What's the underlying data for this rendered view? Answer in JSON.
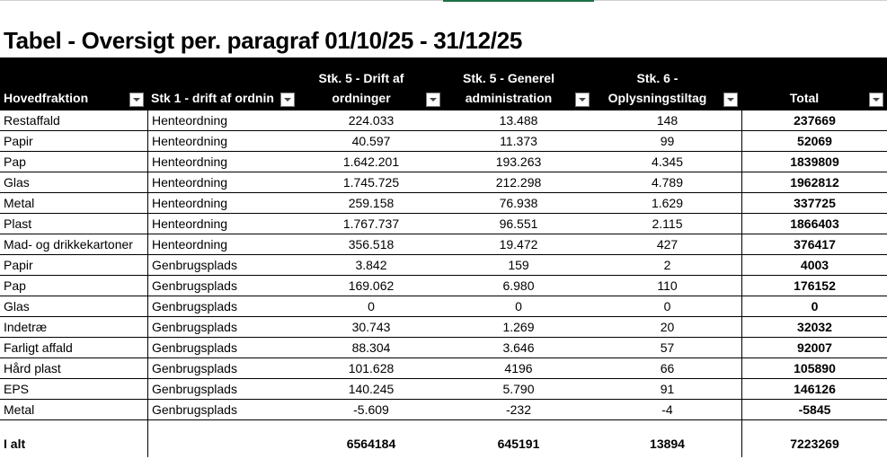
{
  "title": "Tabel - Oversigt per. paragraf 01/10/25 - 31/12/25",
  "columns": [
    {
      "line1": "",
      "line2": "Hovedfraktion",
      "filter_icon": "dropdown-arrow-icon"
    },
    {
      "line1": "",
      "line2": "Stk 1 - drift af ordnin",
      "filter_icon": "dropdown-arrow-icon"
    },
    {
      "line1": "Stk. 5 - Drift af",
      "line2": "ordninger",
      "filter_icon": "dropdown-arrow-icon"
    },
    {
      "line1": "Stk. 5 - Generel",
      "line2": "administration",
      "filter_icon": "dropdown-arrow-icon"
    },
    {
      "line1": "Stk. 6 -",
      "line2": "Oplysningstiltag",
      "filter_icon": "dropdown-arrow-icon"
    },
    {
      "line1": "",
      "line2": "Total",
      "filter_icon": "dropdown-arrow-icon"
    }
  ],
  "rows": [
    [
      "Restaffald",
      "Henteordning",
      "224.033",
      "13.488",
      "148",
      "237669"
    ],
    [
      "Papir",
      "Henteordning",
      "40.597",
      "11.373",
      "99",
      "52069"
    ],
    [
      "Pap",
      "Henteordning",
      "1.642.201",
      "193.263",
      "4.345",
      "1839809"
    ],
    [
      "Glas",
      "Henteordning",
      "1.745.725",
      "212.298",
      "4.789",
      "1962812"
    ],
    [
      "Metal",
      "Henteordning",
      "259.158",
      "76.938",
      "1.629",
      "337725"
    ],
    [
      "Plast",
      "Henteordning",
      "1.767.737",
      "96.551",
      "2.115",
      "1866403"
    ],
    [
      "Mad- og drikkekartoner",
      "Henteordning",
      "356.518",
      "19.472",
      "427",
      "376417"
    ],
    [
      "Papir",
      "Genbrugsplads",
      "3.842",
      "159",
      "2",
      "4003"
    ],
    [
      "Pap",
      "Genbrugsplads",
      "169.062",
      "6.980",
      "110",
      "176152"
    ],
    [
      "Glas",
      "Genbrugsplads",
      "0",
      "0",
      "0",
      "0"
    ],
    [
      "Indetræ",
      "Genbrugsplads",
      "30.743",
      "1.269",
      "20",
      "32032"
    ],
    [
      "Farligt affald",
      "Genbrugsplads",
      "88.304",
      "3.646",
      "57",
      "92007"
    ],
    [
      "Hård plast",
      "Genbrugsplads",
      "101.628",
      "4196",
      "66",
      "105890"
    ],
    [
      "EPS",
      "Genbrugsplads",
      "140.245",
      "5.790",
      "91",
      "146126"
    ],
    [
      "Metal",
      "Genbrugsplads",
      "-5.609",
      "-232",
      "-4",
      "-5845"
    ]
  ],
  "total_row": [
    "I alt",
    "",
    "6564184",
    "645191",
    "13894",
    "7223269"
  ],
  "colors": {
    "header_bg": "#000000",
    "header_text": "#ffffff",
    "accent": "#1e7145"
  }
}
